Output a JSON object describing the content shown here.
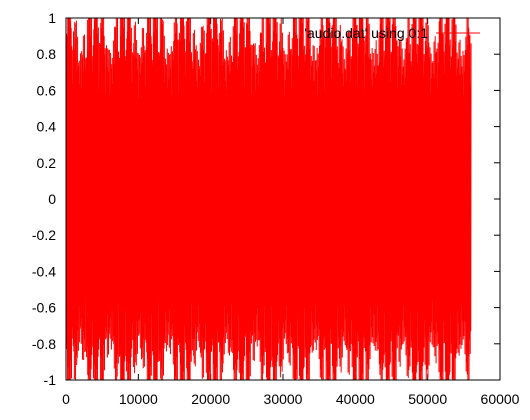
{
  "chart_data": {
    "type": "line",
    "title": "",
    "xlabel": "",
    "ylabel": "",
    "xlim": [
      0,
      60000
    ],
    "ylim": [
      -1,
      1
    ],
    "x_ticks": [
      0,
      10000,
      20000,
      30000,
      40000,
      50000,
      60000
    ],
    "x_tick_labels": [
      "0",
      "10000",
      "20000",
      "30000",
      "40000",
      "50000",
      "60000"
    ],
    "y_ticks": [
      -1,
      -0.8,
      -0.6,
      -0.4,
      -0.2,
      0,
      0.2,
      0.4,
      0.6,
      0.8,
      1
    ],
    "y_tick_labels": [
      "-1",
      "-0.8",
      "-0.6",
      "-0.4",
      "-0.2",
      "0",
      "0.2",
      "0.4",
      "0.6",
      "0.8",
      "1"
    ],
    "grid": false,
    "legend_position": "top-right",
    "series": [
      {
        "name": "'audio.dat' using 0:1",
        "color": "#ff0000",
        "x_range": [
          0,
          56000
        ],
        "y_range": [
          -1,
          1
        ],
        "waveform": "dense oscillation filling the full -1 to 1 range"
      }
    ]
  }
}
